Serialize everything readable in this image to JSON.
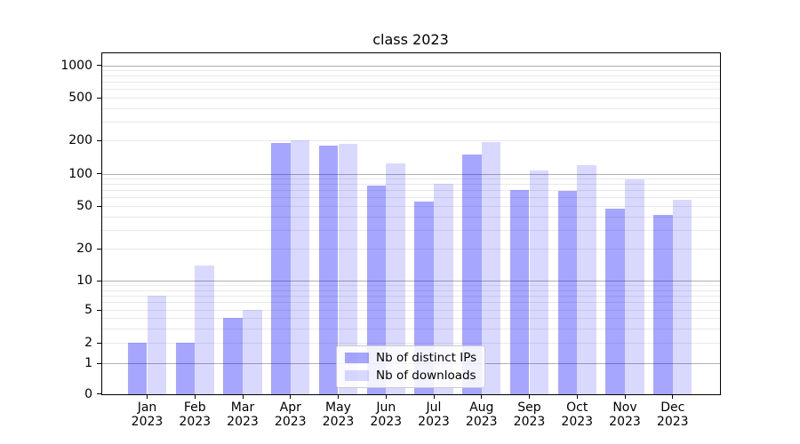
{
  "figure": {
    "background": "#ffffff"
  },
  "chart_data": {
    "type": "bar",
    "title": "class 2023",
    "categories": [
      "Jan",
      "Feb",
      "Mar",
      "Apr",
      "May",
      "Jun",
      "Jul",
      "Aug",
      "Sep",
      "Oct",
      "Nov",
      "Dec"
    ],
    "category_year": "2023",
    "series": [
      {
        "name": "Nb of distinct IPs",
        "color": "rgba(0,0,255,0.35)",
        "color_hex": "#a6a6ff",
        "values": [
          2,
          2,
          4,
          190,
          180,
          78,
          55,
          150,
          70,
          69,
          47,
          41
        ]
      },
      {
        "name": "Nb of downloads",
        "color": "rgba(0,0,255,0.15)",
        "color_hex": "#d9d9ff",
        "values": [
          7,
          14,
          5,
          200,
          188,
          125,
          80,
          195,
          106,
          120,
          89,
          57
        ]
      }
    ],
    "y_axis": {
      "scale": "symlog",
      "tick_values": [
        0,
        1,
        2,
        5,
        10,
        20,
        50,
        100,
        200,
        500,
        1000
      ],
      "tick_labels": [
        "0",
        "1",
        "2",
        "5",
        "10",
        "20",
        "50",
        "100",
        "200",
        "500",
        "1000"
      ],
      "ylim": [
        0,
        1300
      ]
    },
    "grid": {
      "enabled": true,
      "major_color": "#b0b0b0",
      "minor_color": "#e9e9e9"
    },
    "legend": {
      "position": "lower center"
    }
  },
  "colors": {
    "axis": "#000000",
    "text": "#000000",
    "legend_border": "#cccccc"
  }
}
